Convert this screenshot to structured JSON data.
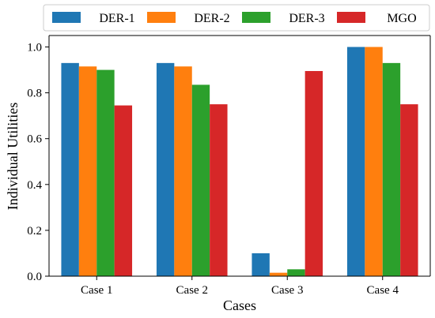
{
  "chart_data": {
    "type": "bar",
    "title": "",
    "xlabel": "Cases",
    "ylabel": "Individual Utilities",
    "categories": [
      "Case 1",
      "Case 2",
      "Case 3",
      "Case 4"
    ],
    "ylim": [
      0,
      1.05
    ],
    "yticks": [
      "0.0",
      "0.2",
      "0.4",
      "0.6",
      "0.8",
      "1.0"
    ],
    "grid": false,
    "legend_position": "top",
    "series": [
      {
        "name": "DER-1",
        "color": "#1f77b4",
        "values": [
          0.93,
          0.93,
          0.1,
          1.0
        ]
      },
      {
        "name": "DER-2",
        "color": "#ff7f0e",
        "values": [
          0.915,
          0.915,
          0.015,
          1.0
        ]
      },
      {
        "name": "DER-3",
        "color": "#2ca02c",
        "values": [
          0.9,
          0.835,
          0.03,
          0.93
        ]
      },
      {
        "name": "MGO",
        "color": "#d62728",
        "values": [
          0.745,
          0.75,
          0.895,
          0.75
        ]
      }
    ]
  }
}
